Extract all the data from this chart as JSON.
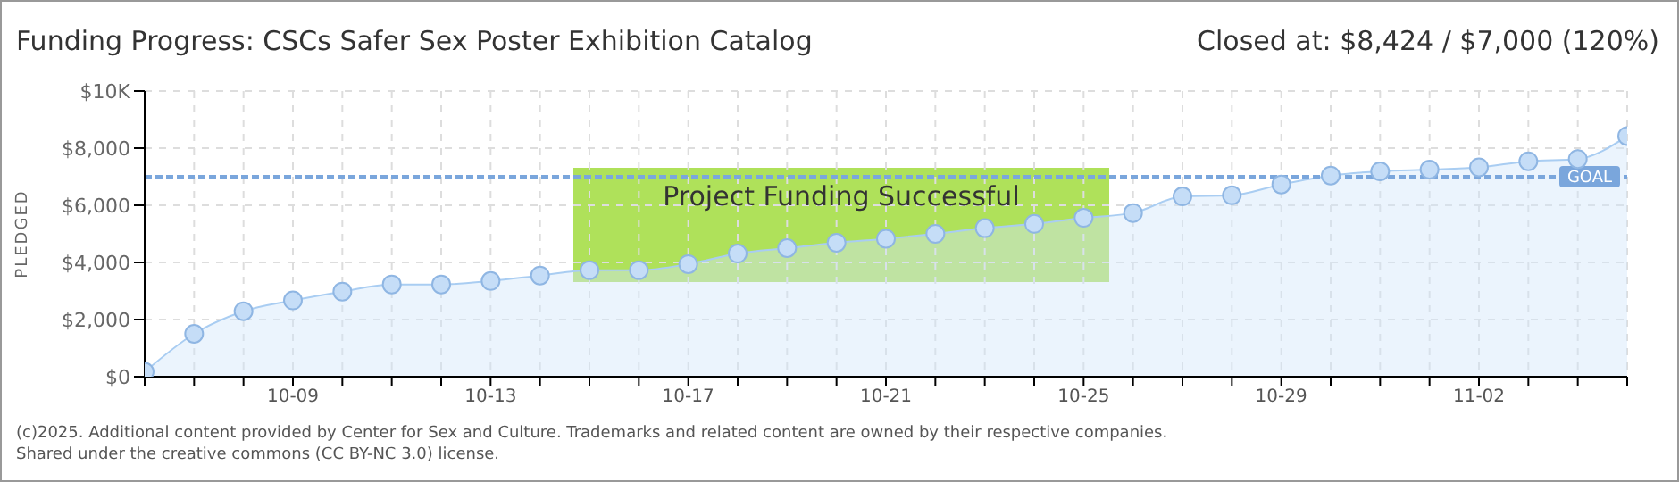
{
  "chart_data": {
    "type": "area",
    "title": "Funding Progress: CSCs Safer Sex Poster Exhibition Catalog",
    "subtitle": "Closed at: $8,424 / $7,000 (120%)",
    "ylabel": "PLEDGED",
    "categories": [
      null,
      null,
      null,
      "10-09",
      null,
      null,
      null,
      "10-13",
      null,
      null,
      null,
      "10-17",
      null,
      null,
      null,
      "10-21",
      null,
      null,
      null,
      "10-25",
      null,
      null,
      null,
      "10-29",
      null,
      null,
      null,
      "11-02",
      null,
      null,
      null
    ],
    "series": [
      {
        "color": "#a9cdf2",
        "values": [
          170,
          1500,
          2290,
          2670,
          2980,
          3230,
          3230,
          3350,
          3540,
          3730,
          3730,
          3940,
          4310,
          4500,
          4690,
          4830,
          5000,
          5200,
          5350,
          5560,
          5730,
          6310,
          6350,
          6730,
          7040,
          7190,
          7250,
          7330,
          7540,
          7620,
          8424
        ]
      }
    ],
    "ylim": [
      0,
      10000
    ],
    "yticks": [
      {
        "value": 0,
        "label": "$0"
      },
      {
        "value": 2000,
        "label": "$2,000"
      },
      {
        "value": 4000,
        "label": "$4,000"
      },
      {
        "value": 6000,
        "label": "$6,000"
      },
      {
        "value": 8000,
        "label": "$8,000"
      },
      {
        "value": 10000,
        "label": "$10K"
      }
    ],
    "ref_lines": [
      {
        "axis": "y",
        "value": 7000,
        "label": "GOAL",
        "color": "#7aa6dc",
        "line_style": "dashed"
      }
    ],
    "annotations": [
      "Project Funding Successful",
      "(c)2025. Additional content provided by Center for Sex and Culture. Trademarks and related content are owned by their respective companies.",
      "Shared under the creative commons (CC BY-NC 3.0) license."
    ],
    "grid": true,
    "marker": "circle",
    "legend": false
  }
}
